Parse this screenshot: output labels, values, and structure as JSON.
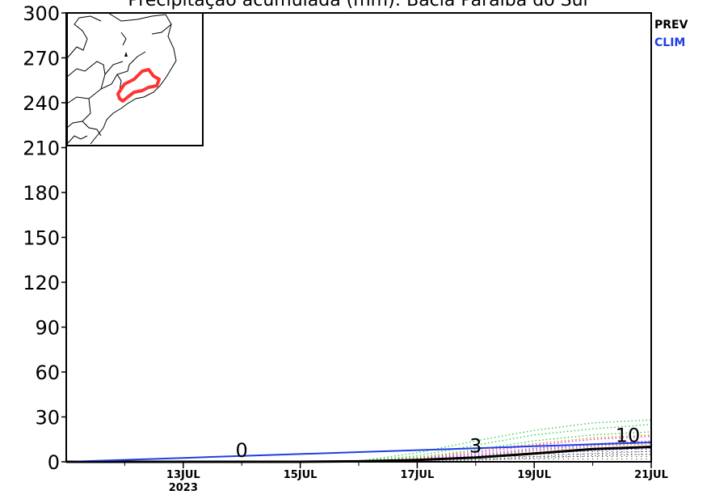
{
  "chart_data": {
    "type": "line",
    "title": "Precipitação acumulada (mm): Bacia Paraíba do Sul",
    "xlabel": "",
    "ylabel": "",
    "ylim": [
      0,
      300
    ],
    "yticks": [
      0,
      30,
      60,
      90,
      120,
      150,
      180,
      210,
      240,
      270,
      300
    ],
    "xlim": [
      "2023-07-11",
      "2023-07-21"
    ],
    "xticks": [
      {
        "date": "2023-07-13",
        "label": "13JUL",
        "sublabel": "2023"
      },
      {
        "date": "2023-07-15",
        "label": "15JUL",
        "sublabel": ""
      },
      {
        "date": "2023-07-17",
        "label": "17JUL",
        "sublabel": ""
      },
      {
        "date": "2023-07-19",
        "label": "19JUL",
        "sublabel": ""
      },
      {
        "date": "2023-07-21",
        "label": "21JUL",
        "sublabel": ""
      }
    ],
    "legend": {
      "placement": "right",
      "entries": [
        {
          "label": "PREV",
          "color": "#000000"
        },
        {
          "label": "CLIM",
          "color": "#1f3fe6"
        }
      ]
    },
    "series": [
      {
        "name": "PREV",
        "color": "#000000",
        "style": "solid",
        "x": [
          "2023-07-11",
          "2023-07-12",
          "2023-07-13",
          "2023-07-14",
          "2023-07-15",
          "2023-07-16",
          "2023-07-17",
          "2023-07-18",
          "2023-07-19",
          "2023-07-20",
          "2023-07-21"
        ],
        "y": [
          0,
          0,
          0,
          0,
          0,
          0.3,
          1.2,
          2.8,
          5.5,
          8.5,
          10
        ]
      },
      {
        "name": "CLIM",
        "color": "#1f3fe6",
        "style": "solid",
        "x": [
          "2023-07-11",
          "2023-07-12",
          "2023-07-13",
          "2023-07-14",
          "2023-07-15",
          "2023-07-16",
          "2023-07-17",
          "2023-07-18",
          "2023-07-19",
          "2023-07-20",
          "2023-07-21"
        ],
        "y": [
          0,
          1.3,
          2.6,
          3.9,
          5.2,
          6.5,
          7.8,
          9.1,
          10.4,
          11.7,
          13
        ]
      }
    ],
    "ensemble_members": [
      {
        "color": "#22cc44",
        "x": [
          "2023-07-15",
          "2023-07-16",
          "2023-07-17",
          "2023-07-18",
          "2023-07-19",
          "2023-07-20",
          "2023-07-21"
        ],
        "y": [
          0,
          0.5,
          6,
          14,
          21,
          26,
          28
        ]
      },
      {
        "color": "#22cc44",
        "x": [
          "2023-07-15",
          "2023-07-16",
          "2023-07-17",
          "2023-07-18",
          "2023-07-19",
          "2023-07-20",
          "2023-07-21"
        ],
        "y": [
          0,
          0.3,
          4,
          11,
          18,
          22,
          25
        ]
      },
      {
        "color": "#22cc44",
        "x": [
          "2023-07-15",
          "2023-07-16",
          "2023-07-17",
          "2023-07-18",
          "2023-07-19",
          "2023-07-20",
          "2023-07-21"
        ],
        "y": [
          0,
          0.2,
          3,
          8,
          14,
          18,
          20
        ]
      },
      {
        "color": "#cc33cc",
        "x": [
          "2023-07-15",
          "2023-07-16",
          "2023-07-17",
          "2023-07-18",
          "2023-07-19",
          "2023-07-20",
          "2023-07-21"
        ],
        "y": [
          0,
          0.2,
          2,
          6,
          11,
          15,
          17
        ]
      },
      {
        "color": "#cc33cc",
        "x": [
          "2023-07-15",
          "2023-07-16",
          "2023-07-17",
          "2023-07-18",
          "2023-07-19",
          "2023-07-20",
          "2023-07-21"
        ],
        "y": [
          0,
          0.1,
          1.5,
          5,
          9,
          12,
          14
        ]
      },
      {
        "color": "#ff7700",
        "x": [
          "2023-07-15",
          "2023-07-16",
          "2023-07-17",
          "2023-07-18",
          "2023-07-19",
          "2023-07-20",
          "2023-07-21"
        ],
        "y": [
          0,
          0.2,
          2.5,
          7,
          12,
          16,
          18
        ]
      },
      {
        "color": "#ff7700",
        "x": [
          "2023-07-15",
          "2023-07-16",
          "2023-07-17",
          "2023-07-18",
          "2023-07-19",
          "2023-07-20",
          "2023-07-21"
        ],
        "y": [
          0,
          0.1,
          1,
          3.5,
          7,
          10,
          12
        ]
      },
      {
        "color": "#5555ff",
        "x": [
          "2023-07-15",
          "2023-07-16",
          "2023-07-17",
          "2023-07-18",
          "2023-07-19",
          "2023-07-20",
          "2023-07-21"
        ],
        "y": [
          0,
          0.1,
          1.2,
          4,
          8,
          11,
          13
        ]
      },
      {
        "color": "#5555ff",
        "x": [
          "2023-07-15",
          "2023-07-16",
          "2023-07-17",
          "2023-07-18",
          "2023-07-19",
          "2023-07-20",
          "2023-07-21"
        ],
        "y": [
          0,
          0,
          0.8,
          2.5,
          5,
          7.5,
          9
        ]
      },
      {
        "color": "#777777",
        "x": [
          "2023-07-15",
          "2023-07-16",
          "2023-07-17",
          "2023-07-18",
          "2023-07-19",
          "2023-07-20",
          "2023-07-21"
        ],
        "y": [
          0,
          0,
          0.5,
          1.5,
          3.5,
          5.5,
          7
        ]
      },
      {
        "color": "#777777",
        "x": [
          "2023-07-15",
          "2023-07-16",
          "2023-07-17",
          "2023-07-18",
          "2023-07-19",
          "2023-07-20",
          "2023-07-21"
        ],
        "y": [
          0,
          0,
          0.3,
          1,
          2.5,
          4,
          5
        ]
      }
    ],
    "annotations": [
      {
        "text": "0",
        "date": "2023-07-14",
        "value": 0
      },
      {
        "text": "3",
        "date": "2023-07-18",
        "value": 3
      },
      {
        "text": "10",
        "date": "2023-07-20.6",
        "value": 10
      }
    ],
    "inset": {
      "name": "basin-location-map",
      "basin_outline_color": "#ff3333"
    }
  }
}
